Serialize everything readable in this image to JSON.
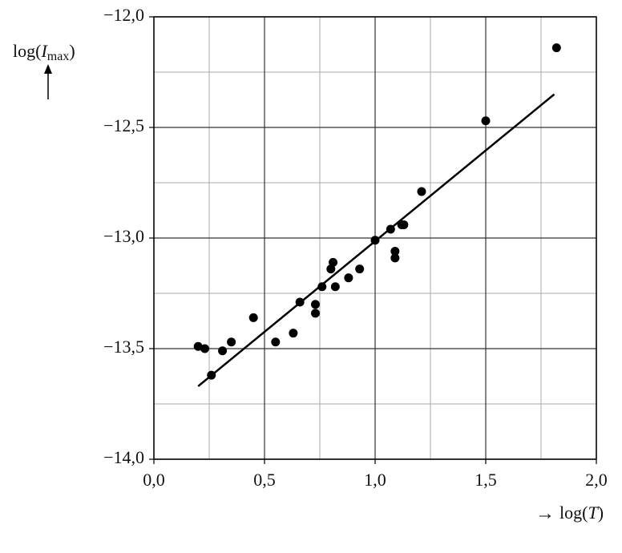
{
  "chart_data": {
    "type": "scatter",
    "x_label": {
      "arrow": "→",
      "prefix": "log(",
      "symbol": "T",
      "suffix": ")"
    },
    "y_label": {
      "prefix": "log(",
      "symbol": "I",
      "subscript": "max",
      "suffix": ")"
    },
    "x": [
      0.2,
      0.23,
      0.26,
      0.31,
      0.35,
      0.45,
      0.55,
      0.63,
      0.66,
      0.73,
      0.73,
      0.76,
      0.8,
      0.81,
      0.82,
      0.88,
      0.93,
      1.0,
      1.07,
      1.09,
      1.09,
      1.12,
      1.13,
      1.21,
      1.5,
      1.82
    ],
    "values": [
      -13.49,
      -13.5,
      -13.62,
      -13.51,
      -13.47,
      -13.36,
      -13.47,
      -13.43,
      -13.29,
      -13.3,
      -13.34,
      -13.22,
      -13.14,
      -13.11,
      -13.22,
      -13.18,
      -13.14,
      -13.01,
      -12.96,
      -13.06,
      -13.09,
      -12.94,
      -12.94,
      -12.79,
      -12.47,
      -12.14
    ],
    "color": "#000000",
    "fit_line": {
      "x": [
        0.2,
        1.81
      ],
      "y": [
        -13.67,
        -12.35
      ],
      "color": "#000000"
    },
    "xlim": [
      0,
      2
    ],
    "ylim": [
      -14,
      -12
    ],
    "xticks": [
      {
        "value": 0,
        "label": "0,0"
      },
      {
        "value": 0.5,
        "label": "0,5"
      },
      {
        "value": 1,
        "label": "1,0"
      },
      {
        "value": 1.5,
        "label": "1,5"
      },
      {
        "value": 2,
        "label": "2,0"
      }
    ],
    "yticks": [
      {
        "value": -14,
        "label": "−14,0"
      },
      {
        "value": -13.5,
        "label": "−13,5"
      },
      {
        "value": -13,
        "label": "−13,0"
      },
      {
        "value": -12.5,
        "label": "−12,5"
      },
      {
        "value": -12,
        "label": "−12,0"
      }
    ],
    "xticks_minor": [
      0.25,
      0.75,
      1.25,
      1.75
    ],
    "yticks_minor": [
      -13.75,
      -13.25,
      -12.75,
      -12.25
    ],
    "grid": true
  }
}
